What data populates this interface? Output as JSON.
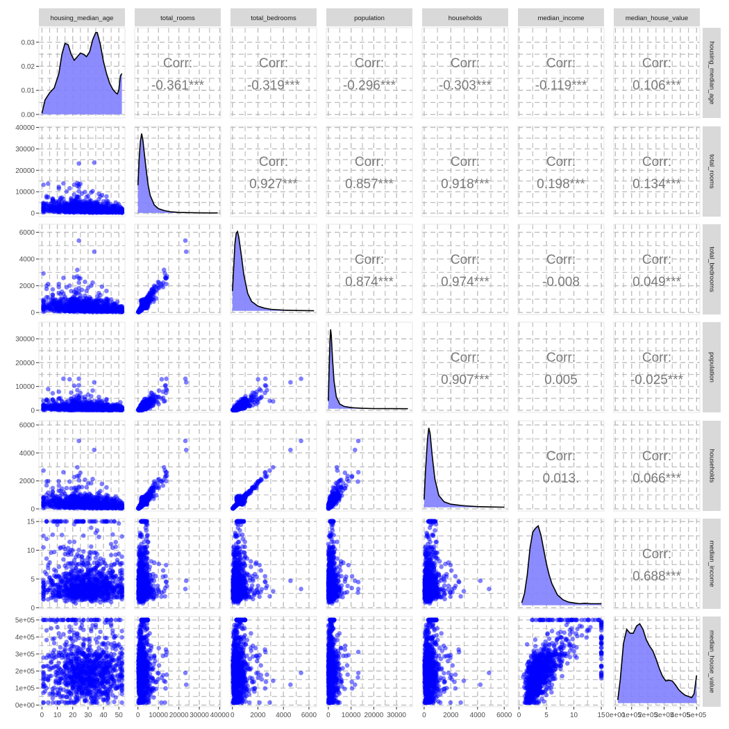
{
  "chart_data": {
    "type": "scatter",
    "title": "",
    "variables": [
      "housing_median_age",
      "total_rooms",
      "total_bedrooms",
      "population",
      "households",
      "median_income",
      "median_house_value"
    ],
    "axes": [
      {
        "range": [
          -2,
          54
        ],
        "ticks": [
          0,
          10,
          20,
          30,
          40,
          50
        ],
        "tick_labels": [
          "0",
          "10",
          "20",
          "30",
          "40",
          "50"
        ]
      },
      {
        "range": [
          -1600,
          40500
        ],
        "ticks": [
          0,
          10000,
          20000,
          30000,
          40000
        ],
        "tick_labels": [
          "0",
          "10000",
          "20000",
          "30000",
          "40000"
        ]
      },
      {
        "range": [
          -150,
          6600
        ],
        "ticks": [
          0,
          2000,
          4000,
          6000
        ],
        "tick_labels": [
          "0",
          "2000",
          "4000",
          "6000"
        ]
      },
      {
        "range": [
          -900,
          37000
        ],
        "ticks": [
          0,
          10000,
          20000,
          30000
        ],
        "tick_labels": [
          "0",
          "10000",
          "20000",
          "30000"
        ]
      },
      {
        "range": [
          -150,
          6300
        ],
        "ticks": [
          0,
          2000,
          4000,
          6000
        ],
        "tick_labels": [
          "0",
          "2000",
          "4000",
          "6000"
        ]
      },
      {
        "range": [
          -0.2,
          15.5
        ],
        "ticks": [
          0,
          5,
          10,
          15
        ],
        "tick_labels": [
          "0",
          "5",
          "10",
          "15"
        ]
      },
      {
        "range": [
          -10000,
          520000
        ],
        "ticks": [
          0,
          100000,
          200000,
          300000,
          400000,
          500000
        ],
        "tick_labels": [
          "0e+00",
          "1e+05",
          "2e+05",
          "3e+05",
          "4e+05",
          "5e+05"
        ]
      }
    ],
    "density_axis": {
      "range": [
        -0.0015,
        0.036
      ],
      "ticks": [
        0,
        0.01,
        0.02,
        0.03
      ],
      "tick_labels": [
        "0.00",
        "0.01",
        "0.02",
        "0.03"
      ]
    },
    "density_curves": [
      [
        [
          0,
          0.0005
        ],
        [
          2,
          0.006
        ],
        [
          5,
          0.009
        ],
        [
          8,
          0.011
        ],
        [
          11,
          0.017
        ],
        [
          13,
          0.025
        ],
        [
          15,
          0.0295
        ],
        [
          17,
          0.029
        ],
        [
          19,
          0.025
        ],
        [
          21,
          0.0225
        ],
        [
          23,
          0.024
        ],
        [
          25,
          0.0255
        ],
        [
          27,
          0.025
        ],
        [
          29,
          0.024
        ],
        [
          31,
          0.026
        ],
        [
          33,
          0.031
        ],
        [
          35,
          0.034
        ],
        [
          36,
          0.034
        ],
        [
          38,
          0.029
        ],
        [
          40,
          0.022
        ],
        [
          42,
          0.017
        ],
        [
          44,
          0.013
        ],
        [
          46,
          0.0105
        ],
        [
          48,
          0.009
        ],
        [
          49,
          0.0085
        ],
        [
          50,
          0.01
        ],
        [
          51,
          0.016
        ],
        [
          52,
          0.017
        ]
      ],
      [
        [
          0,
          0.35
        ],
        [
          600,
          0.7
        ],
        [
          1200,
          0.9
        ],
        [
          1800,
          1.0
        ],
        [
          2400,
          0.92
        ],
        [
          3000,
          0.78
        ],
        [
          4000,
          0.55
        ],
        [
          5000,
          0.35
        ],
        [
          6000,
          0.22
        ],
        [
          8000,
          0.1
        ],
        [
          10000,
          0.055
        ],
        [
          13000,
          0.03
        ],
        [
          16000,
          0.015
        ],
        [
          20000,
          0.008
        ],
        [
          25000,
          0.004
        ],
        [
          30000,
          0.002
        ],
        [
          35000,
          0.001
        ],
        [
          39000,
          0.0005
        ]
      ],
      [
        [
          0,
          0.25
        ],
        [
          100,
          0.55
        ],
        [
          200,
          0.85
        ],
        [
          300,
          0.98
        ],
        [
          400,
          1.0
        ],
        [
          500,
          0.93
        ],
        [
          700,
          0.7
        ],
        [
          900,
          0.45
        ],
        [
          1200,
          0.22
        ],
        [
          1500,
          0.12
        ],
        [
          2000,
          0.06
        ],
        [
          2500,
          0.035
        ],
        [
          3000,
          0.02
        ],
        [
          4000,
          0.01
        ],
        [
          5000,
          0.005
        ],
        [
          6400,
          0.002
        ]
      ],
      [
        [
          0,
          0.1
        ],
        [
          300,
          0.45
        ],
        [
          700,
          0.85
        ],
        [
          1000,
          1.0
        ],
        [
          1300,
          0.92
        ],
        [
          1800,
          0.65
        ],
        [
          2500,
          0.35
        ],
        [
          3500,
          0.15
        ],
        [
          5000,
          0.06
        ],
        [
          7000,
          0.03
        ],
        [
          10000,
          0.015
        ],
        [
          15000,
          0.006
        ],
        [
          20000,
          0.003
        ],
        [
          28000,
          0.0015
        ],
        [
          35000,
          0.001
        ]
      ],
      [
        [
          0,
          0.1
        ],
        [
          100,
          0.45
        ],
        [
          250,
          0.85
        ],
        [
          350,
          1.0
        ],
        [
          450,
          0.93
        ],
        [
          600,
          0.66
        ],
        [
          800,
          0.36
        ],
        [
          1100,
          0.15
        ],
        [
          1500,
          0.07
        ],
        [
          2000,
          0.04
        ],
        [
          3000,
          0.02
        ],
        [
          4000,
          0.01
        ],
        [
          5000,
          0.005
        ],
        [
          6000,
          0.003
        ]
      ],
      [
        [
          0.5,
          0.03
        ],
        [
          1,
          0.15
        ],
        [
          1.5,
          0.38
        ],
        [
          2,
          0.72
        ],
        [
          2.5,
          0.92
        ],
        [
          3,
          0.97
        ],
        [
          3.5,
          1.0
        ],
        [
          4,
          0.88
        ],
        [
          4.5,
          0.7
        ],
        [
          5,
          0.52
        ],
        [
          5.5,
          0.38
        ],
        [
          6,
          0.27
        ],
        [
          7,
          0.13
        ],
        [
          8,
          0.07
        ],
        [
          9,
          0.04
        ],
        [
          10,
          0.03
        ],
        [
          11,
          0.02
        ],
        [
          12,
          0.025
        ],
        [
          13,
          0.02
        ],
        [
          14,
          0.02
        ],
        [
          15,
          0.02
        ]
      ],
      [
        [
          15000,
          0.04
        ],
        [
          30000,
          0.3
        ],
        [
          50000,
          0.75
        ],
        [
          70000,
          0.93
        ],
        [
          90000,
          0.88
        ],
        [
          110000,
          0.88
        ],
        [
          130000,
          0.97
        ],
        [
          150000,
          1.0
        ],
        [
          170000,
          0.93
        ],
        [
          190000,
          0.8
        ],
        [
          210000,
          0.72
        ],
        [
          230000,
          0.66
        ],
        [
          250000,
          0.56
        ],
        [
          270000,
          0.44
        ],
        [
          290000,
          0.34
        ],
        [
          310000,
          0.28
        ],
        [
          330000,
          0.29
        ],
        [
          350000,
          0.28
        ],
        [
          370000,
          0.23
        ],
        [
          390000,
          0.17
        ],
        [
          410000,
          0.13
        ],
        [
          430000,
          0.1
        ],
        [
          450000,
          0.085
        ],
        [
          470000,
          0.07
        ],
        [
          485000,
          0.12
        ],
        [
          500000,
          0.35
        ]
      ]
    ],
    "correlations": [
      {
        "row": 1,
        "col": 2,
        "label": "Corr:",
        "value": "-0.361***"
      },
      {
        "row": 1,
        "col": 3,
        "label": "Corr:",
        "value": "-0.319***"
      },
      {
        "row": 1,
        "col": 4,
        "label": "Corr:",
        "value": "-0.296***"
      },
      {
        "row": 1,
        "col": 5,
        "label": "Corr:",
        "value": "-0.303***"
      },
      {
        "row": 1,
        "col": 6,
        "label": "Corr:",
        "value": "-0.119***"
      },
      {
        "row": 1,
        "col": 7,
        "label": "Corr:",
        "value": "0.106***"
      },
      {
        "row": 2,
        "col": 3,
        "label": "Corr:",
        "value": "0.927***"
      },
      {
        "row": 2,
        "col": 4,
        "label": "Corr:",
        "value": "0.857***"
      },
      {
        "row": 2,
        "col": 5,
        "label": "Corr:",
        "value": "0.918***"
      },
      {
        "row": 2,
        "col": 6,
        "label": "Corr:",
        "value": "0.198***"
      },
      {
        "row": 2,
        "col": 7,
        "label": "Corr:",
        "value": "0.134***"
      },
      {
        "row": 3,
        "col": 4,
        "label": "Corr:",
        "value": "0.874***"
      },
      {
        "row": 3,
        "col": 5,
        "label": "Corr:",
        "value": "0.974***"
      },
      {
        "row": 3,
        "col": 6,
        "label": "Corr:",
        "value": "-0.008"
      },
      {
        "row": 3,
        "col": 7,
        "label": "Corr:",
        "value": "0.049***"
      },
      {
        "row": 4,
        "col": 5,
        "label": "Corr:",
        "value": "0.907***"
      },
      {
        "row": 4,
        "col": 6,
        "label": "Corr:",
        "value": "0.005"
      },
      {
        "row": 4,
        "col": 7,
        "label": "Corr:",
        "value": "-0.025***"
      },
      {
        "row": 5,
        "col": 6,
        "label": "Corr:",
        "value": "0.013."
      },
      {
        "row": 5,
        "col": 7,
        "label": "Corr:",
        "value": "0.066***"
      },
      {
        "row": 6,
        "col": 7,
        "label": "Corr:",
        "value": "0.688***"
      }
    ],
    "point_color": "#0000ff",
    "point_opacity": 0.5,
    "density_fill": "#7f7fff",
    "panel_border": "#e6e6e6",
    "grid": true,
    "grid_color": "#bdbdbd",
    "strip_color": "#d9d9d9"
  }
}
